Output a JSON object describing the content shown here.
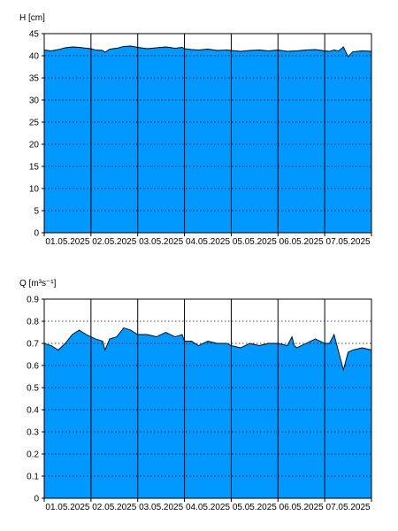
{
  "colors": {
    "fill": "#0099ff",
    "line": "#000000",
    "grid": "#000000",
    "background": "#ffffff"
  },
  "chart_data": [
    {
      "type": "area",
      "ylabel": "H [cm]",
      "ylim": [
        0,
        45
      ],
      "yticks": [
        "0",
        "5",
        "10",
        "15",
        "20",
        "25",
        "30",
        "35",
        "40",
        "45"
      ],
      "xlim": [
        0,
        7
      ],
      "day_labels": [
        "01.05.2025",
        "02.05.2025",
        "03.05.2025",
        "04.05.2025",
        "05.05.2025",
        "06.05.2025",
        "07.05.2025"
      ],
      "grid": "vertical day separators (solid), horizontal dotted",
      "series": [
        {
          "x": [
            0,
            0.15,
            0.3,
            0.45,
            0.6,
            0.75,
            0.9,
            1.0,
            1.1,
            1.25,
            1.3,
            1.4,
            1.55,
            1.7,
            1.85,
            2.0,
            2.2,
            2.4,
            2.6,
            2.8,
            2.95,
            3.0,
            3.15,
            3.3,
            3.5,
            3.7,
            3.9,
            4.0,
            4.2,
            4.4,
            4.6,
            4.8,
            5.0,
            5.2,
            5.4,
            5.6,
            5.8,
            6.0,
            6.1,
            6.2,
            6.3,
            6.4,
            6.5,
            6.6,
            6.8,
            7.0
          ],
          "values": [
            41.3,
            41.1,
            41.4,
            41.8,
            42.0,
            41.9,
            41.7,
            41.6,
            41.3,
            41.2,
            40.8,
            41.5,
            41.7,
            42.1,
            42.2,
            41.9,
            41.6,
            41.8,
            42.0,
            41.7,
            41.9,
            41.6,
            41.4,
            41.3,
            41.5,
            41.2,
            41.3,
            41.2,
            41.0,
            41.2,
            41.3,
            41.1,
            41.3,
            41.0,
            41.1,
            41.3,
            41.4,
            41.1,
            41.0,
            41.3,
            41.1,
            42.0,
            39.8,
            40.9,
            41.1,
            41.0
          ]
        }
      ]
    },
    {
      "type": "area",
      "ylabel": "Q [m³s⁻¹]",
      "ylim": [
        0,
        0.9
      ],
      "yticks": [
        "0",
        "0.1",
        "0.2",
        "0.3",
        "0.4",
        "0.5",
        "0.6",
        "0.7",
        "0.8",
        "0.9"
      ],
      "xlim": [
        0,
        7
      ],
      "day_labels": [
        "01.05.2025",
        "02.05.2025",
        "03.05.2025",
        "04.05.2025",
        "05.05.2025",
        "06.05.2025",
        "07.05.2025"
      ],
      "grid": "vertical day separators (solid), horizontal dotted",
      "series": [
        {
          "x": [
            0,
            0.15,
            0.3,
            0.45,
            0.6,
            0.75,
            0.9,
            1.0,
            1.1,
            1.25,
            1.3,
            1.4,
            1.55,
            1.7,
            1.85,
            2.0,
            2.2,
            2.4,
            2.6,
            2.8,
            2.95,
            3.0,
            3.15,
            3.3,
            3.5,
            3.7,
            3.9,
            4.0,
            4.2,
            4.4,
            4.6,
            4.8,
            5.0,
            5.2,
            5.3,
            5.35,
            5.4,
            5.6,
            5.8,
            6.0,
            6.1,
            6.2,
            6.3,
            6.4,
            6.5,
            6.6,
            6.8,
            7.0
          ],
          "values": [
            0.7,
            0.69,
            0.67,
            0.7,
            0.74,
            0.76,
            0.74,
            0.73,
            0.72,
            0.71,
            0.67,
            0.72,
            0.73,
            0.77,
            0.76,
            0.74,
            0.74,
            0.73,
            0.75,
            0.73,
            0.74,
            0.71,
            0.71,
            0.69,
            0.71,
            0.7,
            0.7,
            0.69,
            0.68,
            0.7,
            0.69,
            0.7,
            0.7,
            0.69,
            0.73,
            0.69,
            0.68,
            0.7,
            0.72,
            0.7,
            0.7,
            0.74,
            0.66,
            0.58,
            0.66,
            0.67,
            0.68,
            0.67
          ]
        }
      ]
    }
  ]
}
